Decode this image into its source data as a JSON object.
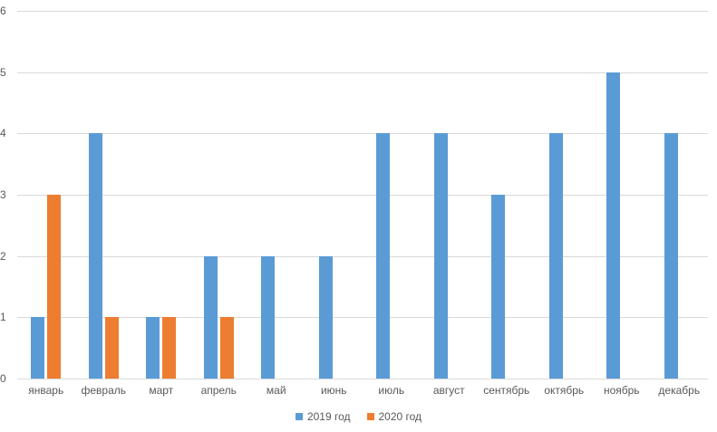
{
  "chart_data": {
    "type": "bar",
    "title": "",
    "categories": [
      "январь",
      "февраль",
      "март",
      "апрель",
      "май",
      "июнь",
      "июль",
      "август",
      "сентябрь",
      "октябрь",
      "ноябрь",
      "декабрь"
    ],
    "series": [
      {
        "name": "2019 год",
        "color": "#5B9BD5",
        "values": [
          1,
          4,
          1,
          2,
          2,
          2,
          4,
          4,
          3,
          4,
          5,
          4
        ]
      },
      {
        "name": "2020 год",
        "color": "#ED7D31",
        "values": [
          3,
          1,
          1,
          1,
          0,
          0,
          0,
          0,
          0,
          0,
          0,
          0
        ]
      }
    ],
    "xlabel": "",
    "ylabel": "",
    "ylim": [
      0,
      6
    ],
    "yticks": [
      0,
      1,
      2,
      3,
      4,
      5,
      6
    ],
    "grid": true,
    "legend_position": "bottom",
    "colors": {
      "gridline": "#D9D9D9",
      "axis_text": "#595959",
      "background": "#FFFFFF"
    }
  }
}
